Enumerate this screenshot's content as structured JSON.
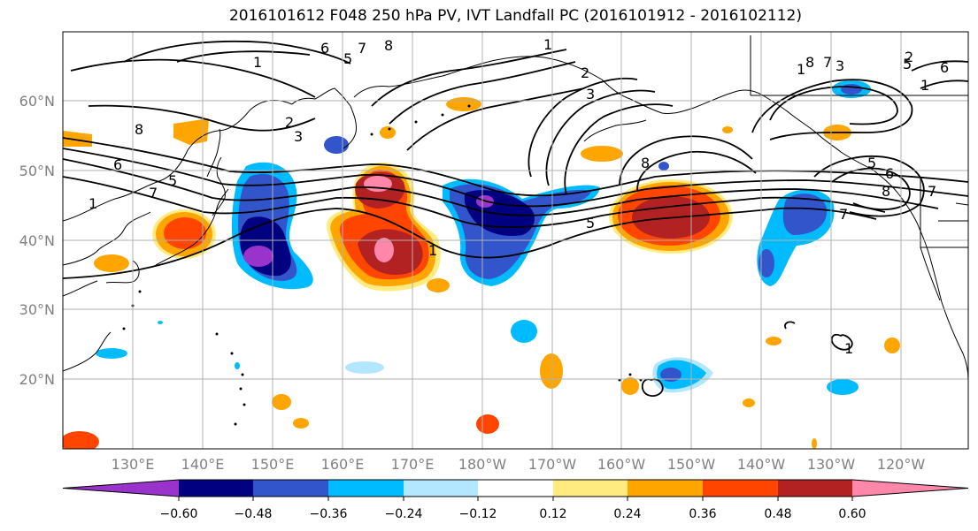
{
  "title": "2016101612 F048 250 hPa PV, IVT Landfall PC (2016101912 - 2016102112)",
  "lat_labels": [
    "60°N",
    "50°N",
    "40°N",
    "30°N",
    "20°N"
  ],
  "lon_labels": [
    "130°E",
    "140°E",
    "150°E",
    "160°E",
    "170°E",
    "180°W",
    "170°W",
    "160°W",
    "150°W",
    "140°W",
    "130°W",
    "120°W"
  ],
  "colorbar": {
    "colors": [
      "#9933cc",
      "#000080",
      "#3355cc",
      "#00bbff",
      "#b3e6ff",
      "#ffffff",
      "#ffeb80",
      "#ffa500",
      "#ff4500",
      "#b22222",
      "#ff88aa"
    ],
    "tick_labels": [
      "−0.60",
      "−0.48",
      "−0.36",
      "−0.24",
      "−0.12",
      "0.12",
      "0.24",
      "0.36",
      "0.48",
      "0.60"
    ]
  },
  "contour_labels": [
    "1",
    "2",
    "3",
    "8",
    "6",
    "5",
    "7",
    "8",
    "1",
    "2",
    "3",
    "6",
    "5",
    "7",
    "8",
    "1",
    "5",
    "1",
    "8",
    "7",
    "6",
    "5",
    "3",
    "2",
    "1",
    "5",
    "6",
    "8",
    "7",
    "7",
    "1",
    "1"
  ],
  "colors": {
    "grid": "#b0b0b0",
    "coast": "#000000",
    "contour": "#000000"
  }
}
